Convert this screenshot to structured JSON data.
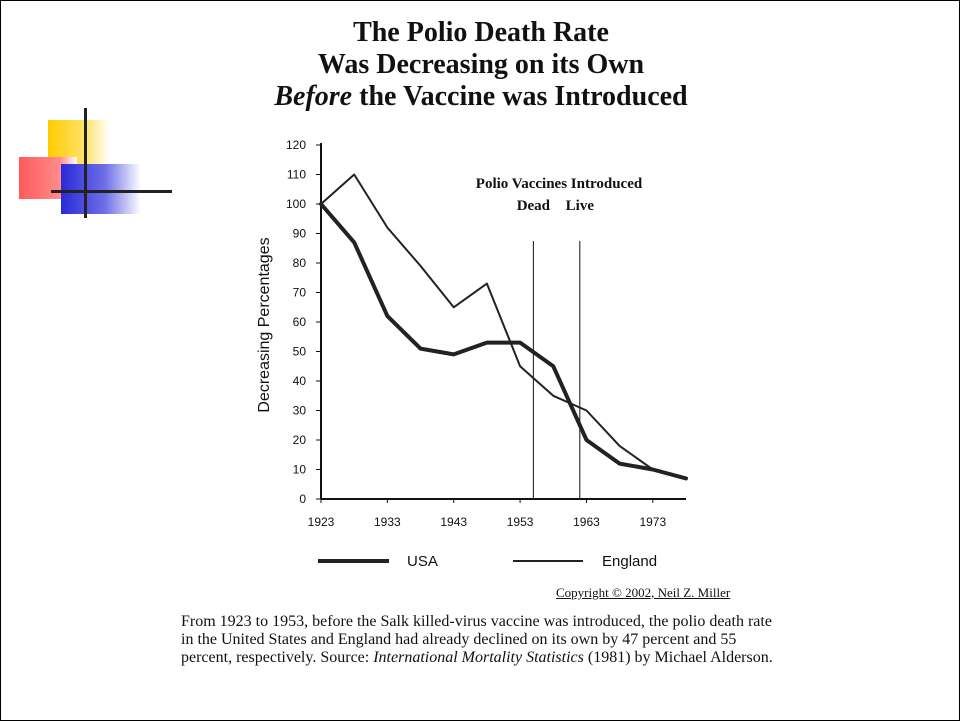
{
  "title": {
    "line1": "The Polio Death Rate",
    "line2": "Was Decreasing on its Own",
    "line3_emph": "Before",
    "line3_rest": " the Vaccine was Introduced"
  },
  "chart_data": {
    "type": "line",
    "ylabel": "Decreasing Percentages",
    "xlabel": "",
    "ylim": [
      0,
      120
    ],
    "yticks": [
      0,
      10,
      20,
      30,
      40,
      50,
      60,
      70,
      80,
      90,
      100,
      110,
      120
    ],
    "xlim": [
      1923,
      1978
    ],
    "xticks": [
      1923,
      1933,
      1943,
      1953,
      1963,
      1973
    ],
    "series": [
      {
        "name": "USA",
        "style": "thick",
        "color": "#222222",
        "points": [
          [
            1923,
            100
          ],
          [
            1928,
            87
          ],
          [
            1933,
            62
          ],
          [
            1938,
            51
          ],
          [
            1943,
            49
          ],
          [
            1948,
            53
          ],
          [
            1953,
            53
          ],
          [
            1958,
            45
          ],
          [
            1963,
            20
          ],
          [
            1968,
            12
          ],
          [
            1973,
            10
          ],
          [
            1978,
            7
          ]
        ]
      },
      {
        "name": "England",
        "style": "thin",
        "color": "#222222",
        "points": [
          [
            1923,
            100
          ],
          [
            1928,
            110
          ],
          [
            1933,
            92
          ],
          [
            1938,
            79
          ],
          [
            1943,
            65
          ],
          [
            1948,
            73
          ],
          [
            1953,
            45
          ],
          [
            1958,
            35
          ],
          [
            1963,
            30
          ],
          [
            1968,
            18
          ],
          [
            1973,
            10
          ],
          [
            1978,
            7
          ]
        ]
      }
    ],
    "annotations": {
      "heading": "Polio Vaccines Introduced",
      "markers": [
        {
          "label": "Dead",
          "x": 1955
        },
        {
          "label": "Live",
          "x": 1962
        }
      ]
    },
    "legend": {
      "placement": "bottom"
    }
  },
  "copyright": "Copyright © 2002, Neil Z. Miller",
  "caption": {
    "text": "From 1923 to 1953, before the Salk killed-virus vaccine was introduced, the polio death rate in the United States and England had already declined on its own by 47 percent and 55 percent, respectively. Source: ",
    "source_title": "International Mortality Statistics",
    "source_rest": " (1981) by Michael Alderson."
  }
}
